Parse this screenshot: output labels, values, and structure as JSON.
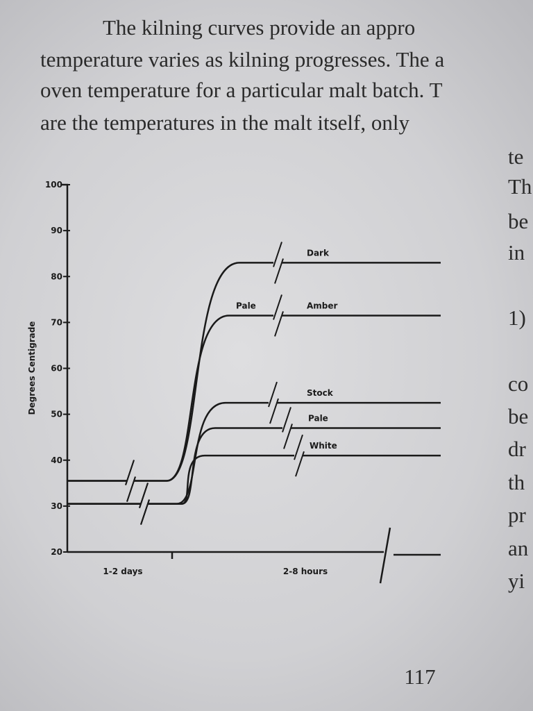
{
  "text_lines": [
    "The kilning curves provide an appro",
    "temperature varies as kilning progresses. The a",
    "oven temperature for a particular malt batch. T",
    "are the temperatures in the malt itself, only"
  ],
  "margin_fragments": [
    "te",
    "Th",
    "be",
    "in",
    "1)",
    "co",
    "be",
    "dr",
    "th",
    "pr",
    "an",
    "yi"
  ],
  "page_number": "117",
  "chart_data": {
    "type": "line",
    "y_label": "Degrees Centigrade",
    "categories": [
      "1-2 days",
      "2-8 hours"
    ],
    "ylim": [
      20,
      100
    ],
    "yticks": [
      20,
      30,
      40,
      50,
      60,
      70,
      80,
      90,
      100
    ],
    "annotation": "Pale",
    "color": "#1a1a1a",
    "series": [
      {
        "name": "Dark",
        "values": [
          35.5,
          83
        ]
      },
      {
        "name": "Amber",
        "values": [
          35.5,
          71.5
        ]
      },
      {
        "name": "Stock",
        "values": [
          30.5,
          52.5
        ]
      },
      {
        "name": "Pale",
        "values": [
          30.5,
          47
        ]
      },
      {
        "name": "White",
        "values": [
          30.5,
          41
        ]
      }
    ]
  }
}
